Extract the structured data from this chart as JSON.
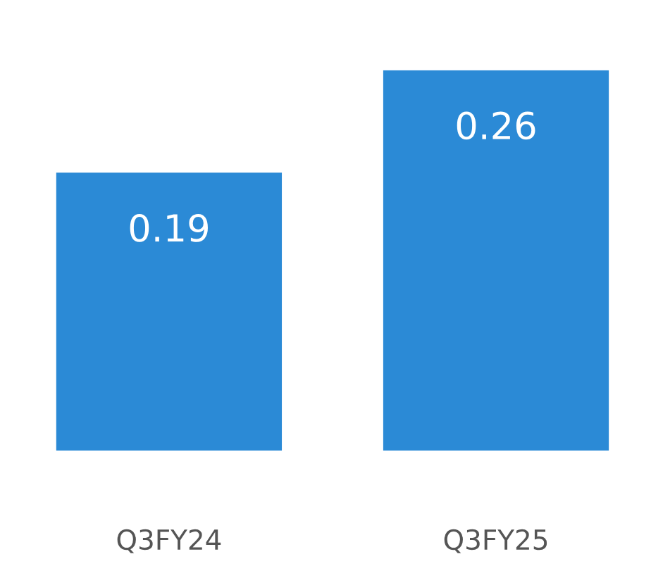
{
  "chart_data": {
    "type": "bar",
    "data_labels": true,
    "categories": [
      "Q3FY24",
      "Q3FY25"
    ],
    "values": [
      0.19,
      0.26
    ],
    "color": "#2b8ad6"
  }
}
